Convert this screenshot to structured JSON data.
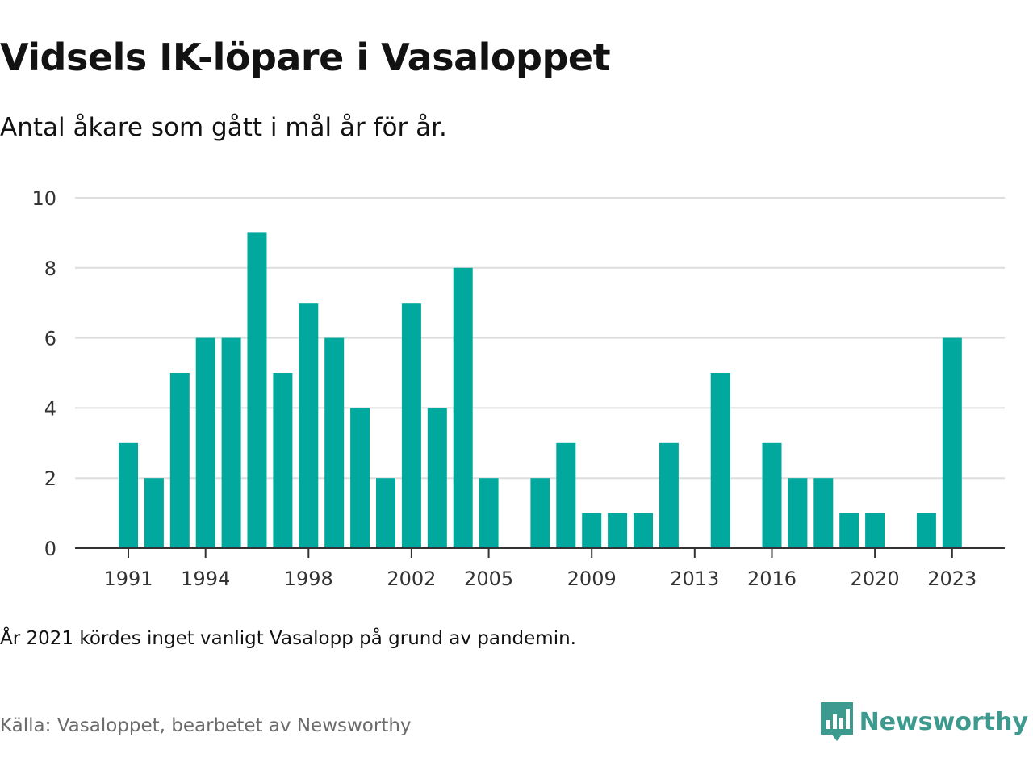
{
  "header": {
    "title": "Vidsels IK-löpare i Vasaloppet",
    "subtitle": "Antal åkare som gått i mål år för år."
  },
  "footer": {
    "note": "År 2021 kördes inget vanligt Vasalopp på grund av pandemin.",
    "source": "Källa: Vasaloppet, bearbetet av Newsworthy",
    "brand": "Newsworthy",
    "brand_icon": "newsworthy-logo-icon"
  },
  "colors": {
    "bar": "#00a89d",
    "brand": "#3d9a8f",
    "grid": "#dddddd",
    "axis": "#333333"
  },
  "chart_data": {
    "type": "bar",
    "title": "Vidsels IK-löpare i Vasaloppet",
    "subtitle": "Antal åkare som gått i mål år för år.",
    "xlabel": "",
    "ylabel": "",
    "ylim": [
      0,
      10
    ],
    "yticks": [
      0,
      2,
      4,
      6,
      8,
      10
    ],
    "xticks": [
      1991,
      1994,
      1998,
      2002,
      2005,
      2009,
      2013,
      2016,
      2020,
      2023
    ],
    "grid": true,
    "legend": "none",
    "categories": [
      1991,
      1992,
      1993,
      1994,
      1995,
      1996,
      1997,
      1998,
      1999,
      2000,
      2001,
      2002,
      2003,
      2004,
      2005,
      2006,
      2007,
      2008,
      2009,
      2010,
      2011,
      2012,
      2013,
      2014,
      2015,
      2016,
      2017,
      2018,
      2019,
      2020,
      2021,
      2022,
      2023
    ],
    "values": [
      3,
      2,
      5,
      6,
      6,
      9,
      5,
      7,
      6,
      4,
      2,
      7,
      4,
      8,
      2,
      0,
      2,
      3,
      1,
      1,
      1,
      3,
      0,
      5,
      0,
      3,
      2,
      2,
      1,
      1,
      0,
      1,
      6
    ]
  }
}
